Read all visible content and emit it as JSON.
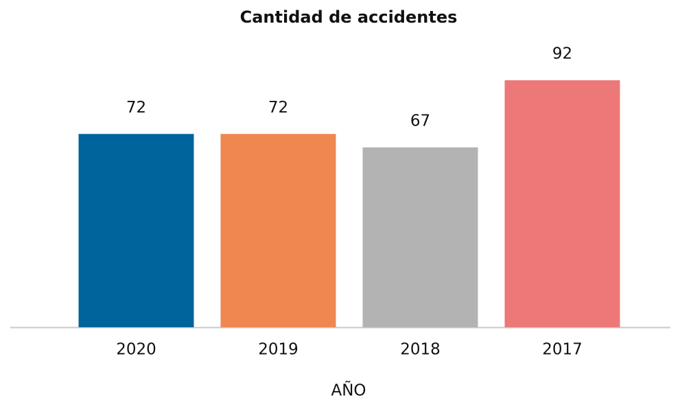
{
  "chart_data": {
    "type": "bar",
    "title": "Cantidad de accidentes",
    "x_label": "AÑO",
    "categories": [
      "2020",
      "2019",
      "2018",
      "2017"
    ],
    "values": [
      72,
      72,
      67,
      92
    ],
    "colors": [
      "#00649c",
      "#f08751",
      "#b3b3b3",
      "#ec7878"
    ]
  }
}
